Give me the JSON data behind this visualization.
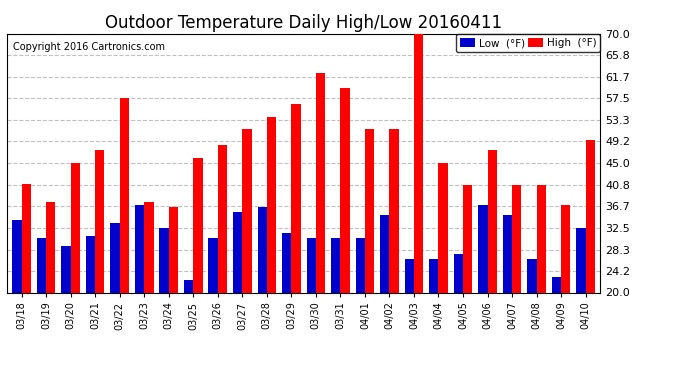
{
  "title": "Outdoor Temperature Daily High/Low 20160411",
  "copyright": "Copyright 2016 Cartronics.com",
  "legend_low": "Low  (°F)",
  "legend_high": "High  (°F)",
  "dates": [
    "03/18",
    "03/19",
    "03/20",
    "03/21",
    "03/22",
    "03/23",
    "03/24",
    "03/25",
    "03/26",
    "03/27",
    "03/28",
    "03/29",
    "03/30",
    "03/31",
    "04/01",
    "04/02",
    "04/03",
    "04/04",
    "04/05",
    "04/06",
    "04/07",
    "04/08",
    "04/09",
    "04/10"
  ],
  "highs": [
    41.0,
    37.5,
    45.0,
    47.5,
    57.5,
    37.5,
    36.5,
    46.0,
    48.5,
    51.5,
    54.0,
    56.5,
    62.5,
    59.5,
    51.5,
    51.5,
    71.0,
    45.0,
    40.8,
    47.5,
    40.8,
    40.8,
    37.0,
    49.5
  ],
  "lows": [
    34.0,
    30.5,
    29.0,
    31.0,
    33.5,
    37.0,
    32.5,
    22.5,
    30.5,
    35.5,
    36.5,
    31.5,
    30.5,
    30.5,
    30.5,
    35.0,
    26.5,
    26.5,
    27.5,
    37.0,
    35.0,
    26.5,
    23.0,
    32.5
  ],
  "ymin": 20.0,
  "ymax": 70.0,
  "yticks": [
    20.0,
    24.2,
    28.3,
    32.5,
    36.7,
    40.8,
    45.0,
    49.2,
    53.3,
    57.5,
    61.7,
    65.8,
    70.0
  ],
  "bar_width": 0.38,
  "high_color": "#ff0000",
  "low_color": "#0000cc",
  "bg_color": "#ffffff",
  "grid_color": "#c0c0c0",
  "title_fontsize": 12,
  "tick_fontsize": 8,
  "copyright_fontsize": 7
}
